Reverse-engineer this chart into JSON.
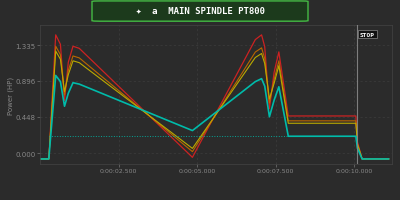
{
  "title": "MAIN SPINDLE PT800",
  "ylabel": "Power (HP)",
  "bg_color": "#2b2b2b",
  "plot_bg": "#2b2b2b",
  "grid_color": "#4a4a4a",
  "yticks": [
    0.0,
    0.448,
    0.896,
    1.335
  ],
  "xtick_labels": [
    "0:00:02.500",
    "0:00:05.000",
    "0:00:07.500",
    "0:00:10.000"
  ],
  "xtick_positions": [
    2.5,
    5.0,
    7.5,
    10.0
  ],
  "xlim": [
    0.0,
    11.2
  ],
  "ylim": [
    -0.13,
    1.58
  ],
  "title_color": "#ffffff",
  "title_bg": "#1c3a1c",
  "title_edge": "#44bb44",
  "axis_color": "#888888",
  "lines": [
    {
      "color": "#cc2222",
      "lw": 0.9
    },
    {
      "color": "#bb6600",
      "lw": 0.8
    },
    {
      "color": "#bbaa00",
      "lw": 0.8
    },
    {
      "color": "#00bbaa",
      "lw": 1.2
    }
  ],
  "hline_y": 0.21,
  "hline_color": "#00bbaa",
  "stop_line_x": 10.1
}
